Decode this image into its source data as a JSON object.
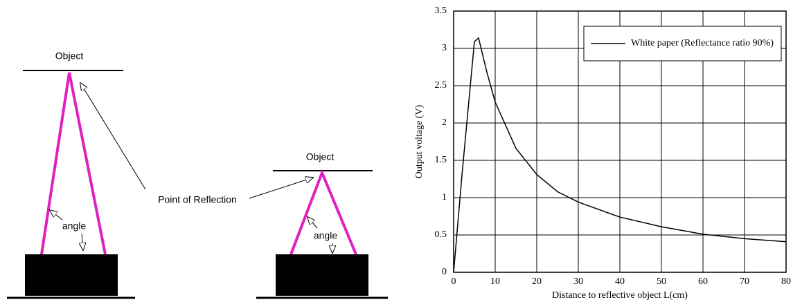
{
  "diagram": {
    "left": {
      "object_label": "Object",
      "angle_label": "angle"
    },
    "right": {
      "object_label": "Object",
      "angle_label": "angle"
    },
    "point_of_reflection": "Point of Reflection"
  },
  "chart_data": {
    "type": "line",
    "xlabel": "Distance to reflective object L(cm)",
    "ylabel": "Output voltage (V)",
    "x": [
      0,
      2,
      5,
      6,
      8,
      10,
      15,
      20,
      25,
      30,
      40,
      50,
      60,
      70,
      80
    ],
    "series": [
      {
        "name": "White paper (Reflectance ratio 90%)",
        "color": "#000000",
        "values": [
          0,
          1.3,
          3.09,
          3.14,
          2.68,
          2.28,
          1.66,
          1.31,
          1.08,
          0.94,
          0.74,
          0.61,
          0.51,
          0.45,
          0.41
        ]
      }
    ],
    "xlim": [
      0,
      80
    ],
    "xticks": [
      0,
      10,
      20,
      30,
      40,
      50,
      60,
      70,
      80
    ],
    "ylim": [
      0,
      3.5
    ],
    "yticks": [
      0,
      0.5,
      1,
      1.5,
      2,
      2.5,
      3,
      3.5
    ],
    "grid": true,
    "legend": "upper right"
  }
}
